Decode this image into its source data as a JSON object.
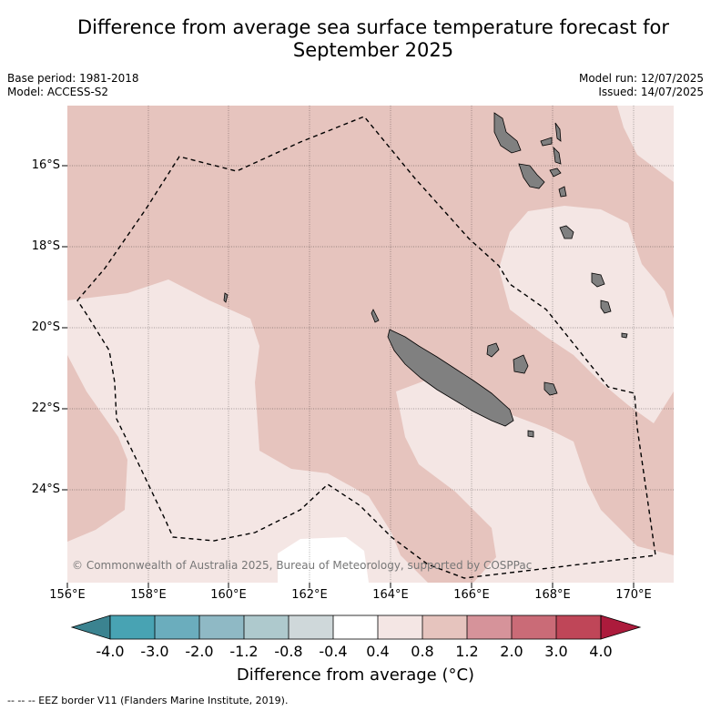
{
  "header": {
    "title_line1": "Difference from average sea surface temperature forecast for",
    "title_line2": "September 2025"
  },
  "meta": {
    "base_period": "Base period: 1981-2018",
    "model": "Model: ACCESS-S2",
    "model_run": "Model run: 12/07/2025",
    "issued": "Issued: 14/07/2025"
  },
  "map": {
    "lat_labels": [
      "16°S",
      "18°S",
      "20°S",
      "22°S",
      "24°S"
    ],
    "lon_labels": [
      "156°E",
      "158°E",
      "160°E",
      "162°E",
      "164°E",
      "166°E",
      "168°E",
      "170°E"
    ],
    "credit": "© Commonwealth of Australia 2025, Bureau of Meteorology, supported by COSPPac",
    "colors": {
      "anomaly_0_4_to_0_8": "#f4e6e4",
      "anomaly_0_8_to_1_2": "#e6c4be",
      "anomaly_neg0_4_to_0_4": "#ffffff",
      "land": "#808080",
      "eez_border": "#000000"
    }
  },
  "colorbar": {
    "title": "Difference from average (°C)",
    "ticks": [
      "-4.0",
      "-3.0",
      "-2.0",
      "-1.2",
      "-0.8",
      "-0.4",
      "0.4",
      "0.8",
      "1.2",
      "2.0",
      "3.0",
      "4.0"
    ],
    "colors": [
      "#3b8390",
      "#48a3b3",
      "#6badbd",
      "#8fb9c5",
      "#aec9cd",
      "#cfd8da",
      "#ffffff",
      "#f4e6e4",
      "#e6c4be",
      "#d6939a",
      "#ca6b77",
      "#bf4658",
      "#ac1b3c"
    ]
  },
  "footnote": "--  --  -- EEZ border V11 (Flanders Marine Institute, 2019)."
}
